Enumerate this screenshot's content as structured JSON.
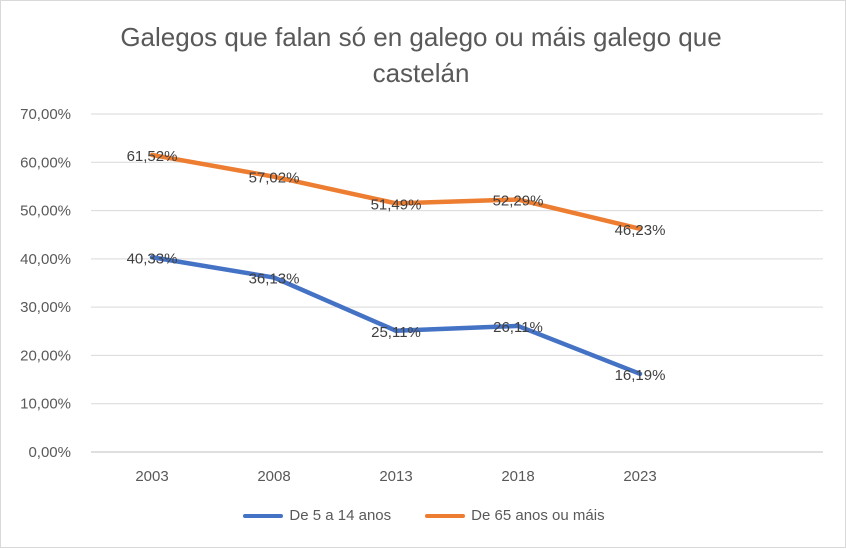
{
  "chart_data": {
    "type": "line",
    "title": "Galegos que falan só en galego ou máis galego que castelán",
    "categories": [
      "2003",
      "2008",
      "2013",
      "2018",
      "2023"
    ],
    "y_ticks": [
      "0,00%",
      "10,00%",
      "20,00%",
      "30,00%",
      "40,00%",
      "50,00%",
      "60,00%",
      "70,00%"
    ],
    "ylim": [
      0,
      70
    ],
    "grid": true,
    "legend_position": "bottom",
    "series": [
      {
        "name": "De 5 a 14 anos",
        "color": "#4472c4",
        "values": [
          40.33,
          36.13,
          25.11,
          26.11,
          16.19
        ],
        "labels": [
          "40,33%",
          "36,13%",
          "25,11%",
          "26,11%",
          "16,19%"
        ]
      },
      {
        "name": "De 65 anos ou máis",
        "color": "#ed7d31",
        "values": [
          61.52,
          57.02,
          51.49,
          52.29,
          46.23
        ],
        "labels": [
          "61,52%",
          "57,02%",
          "51,49%",
          "52,29%",
          "46,23%"
        ]
      }
    ]
  }
}
